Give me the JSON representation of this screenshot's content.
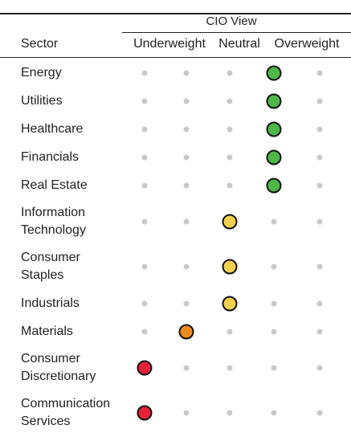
{
  "table": {
    "group_header": "CIO View",
    "sector_header": "Sector",
    "rating_headers": [
      "Underweight",
      "Neutral",
      "Overweight"
    ],
    "rows": [
      {
        "sector": "Energy",
        "rating": 3,
        "color": "#4cb848"
      },
      {
        "sector": "Utilities",
        "rating": 3,
        "color": "#4cb848"
      },
      {
        "sector": "Healthcare",
        "rating": 3,
        "color": "#4cb848"
      },
      {
        "sector": "Financials",
        "rating": 3,
        "color": "#4cb848"
      },
      {
        "sector": "Real Estate",
        "rating": 3,
        "color": "#4cb848"
      },
      {
        "sector": "Information Technology",
        "rating": 2,
        "color": "#f5d04a"
      },
      {
        "sector": "Consumer Staples",
        "rating": 2,
        "color": "#f5d04a"
      },
      {
        "sector": "Industrials",
        "rating": 2,
        "color": "#f5d04a"
      },
      {
        "sector": "Materials",
        "rating": 1,
        "color": "#f08a1c"
      },
      {
        "sector": "Consumer Discretionary",
        "rating": 0,
        "color": "#e8203a"
      },
      {
        "sector": "Communication Services",
        "rating": 0,
        "color": "#e8203a"
      }
    ]
  }
}
